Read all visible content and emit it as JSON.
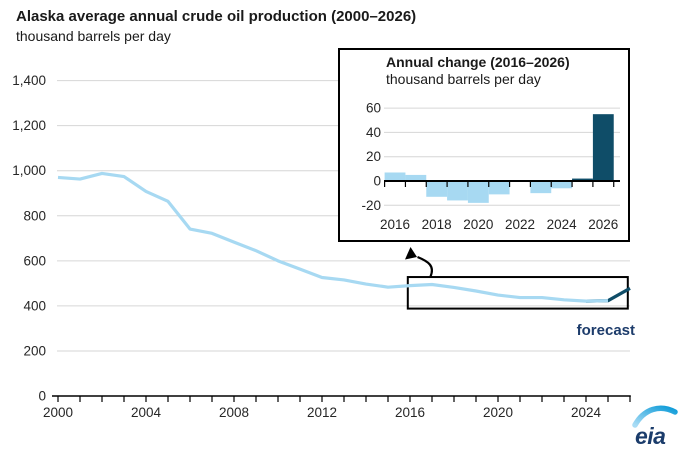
{
  "header": {
    "title": "Alaska average annual crude oil production (2000–2026)",
    "subtitle": "thousand barrels per day"
  },
  "inset": {
    "title": "Annual change (2016–2026)",
    "subtitle": "thousand barrels per day"
  },
  "main_chart": {
    "forecast_label": "forecast"
  },
  "logo": {
    "text": "eia"
  },
  "colors": {
    "history_blue": "#a7d9f2",
    "forecast_navy": "#0f4d68",
    "forecast_text": "#1d3c6b",
    "grid": "#d6d6d6",
    "axis": "#000000",
    "text": "#262626"
  },
  "chart_data": [
    {
      "type": "line",
      "title": "Alaska average annual crude oil production (2000–2026)",
      "ylabel": "thousand barrels per day",
      "x": [
        2000,
        2001,
        2002,
        2003,
        2004,
        2005,
        2006,
        2007,
        2008,
        2009,
        2010,
        2011,
        2012,
        2013,
        2014,
        2015,
        2016,
        2017,
        2018,
        2019,
        2020,
        2021,
        2022,
        2023,
        2024,
        2025,
        2026
      ],
      "values": [
        970,
        963,
        988,
        974,
        908,
        864,
        741,
        722,
        683,
        645,
        600,
        563,
        526,
        515,
        497,
        483,
        490,
        495,
        482,
        466,
        448,
        437,
        437,
        427,
        421,
        423,
        478
      ],
      "series": [
        {
          "name": "history",
          "x_range": [
            2000,
            2025
          ]
        },
        {
          "name": "forecast",
          "x_range": [
            2024,
            2026
          ]
        }
      ],
      "forecast_from_index": 24,
      "history_to_index": 25,
      "ylim": [
        0,
        1400
      ],
      "yticks": [
        0,
        200,
        400,
        600,
        800,
        1000,
        1200,
        1400
      ],
      "ytick_labels": [
        "0",
        "200",
        "400",
        "600",
        "800",
        "1,000",
        "1,200",
        "1,400"
      ],
      "xticks_labeled": [
        2000,
        2004,
        2008,
        2012,
        2016,
        2020,
        2024
      ],
      "x_minor_tick_step": 1,
      "grid": "horizontal",
      "annotation": "forecast",
      "callout_box": {
        "x_from": 2015.9,
        "x_to": 2025.9,
        "y_from": 388,
        "y_to": 528
      }
    },
    {
      "type": "bar",
      "title": "Annual change (2016–2026)",
      "ylabel": "thousand barrels per day",
      "categories": [
        2016,
        2017,
        2018,
        2019,
        2020,
        2021,
        2022,
        2023,
        2024,
        2025,
        2026
      ],
      "values": [
        7,
        5,
        -13,
        -16,
        -18,
        -11,
        0,
        -10,
        -6,
        2,
        55
      ],
      "forecast_from_index": 9,
      "ylim": [
        -25,
        65
      ],
      "yticks": [
        -20,
        0,
        20,
        40,
        60
      ],
      "ytick_labels": [
        "-20",
        "0",
        "20",
        "40",
        "60"
      ],
      "xticks_labeled": [
        2016,
        2018,
        2020,
        2022,
        2024,
        2026
      ],
      "grid": "horizontal"
    }
  ]
}
